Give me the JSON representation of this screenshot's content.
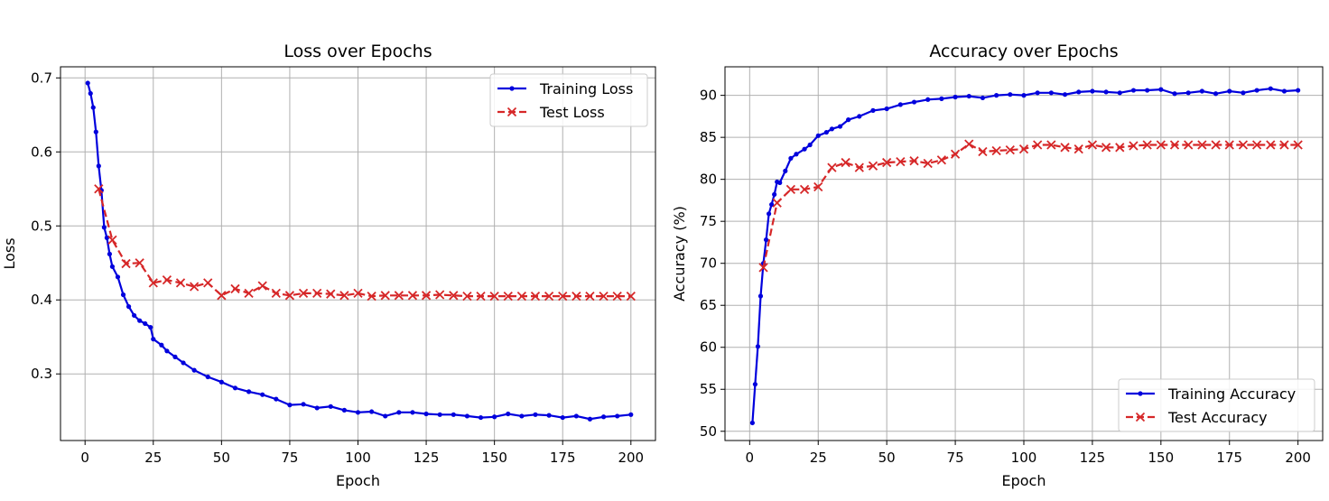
{
  "chart_data": [
    {
      "type": "line",
      "title": "Loss over Epochs",
      "xlabel": "Epoch",
      "ylabel": "Loss",
      "xlim": [
        -9,
        209
      ],
      "ylim": [
        0.21,
        0.715
      ],
      "xticks": [
        0,
        25,
        50,
        75,
        100,
        125,
        150,
        175,
        200
      ],
      "yticks": [
        0.3,
        0.4,
        0.5,
        0.6,
        0.7
      ],
      "ytick_labels": [
        "0.3",
        "0.4",
        "0.5",
        "0.6",
        "0.7"
      ],
      "grid": true,
      "legend_placement": "upper right",
      "series": [
        {
          "name": "Training Loss",
          "color": "#0000dd",
          "style": "solid-dot",
          "x": [
            1,
            2,
            3,
            4,
            5,
            6,
            7,
            8,
            9,
            10,
            12,
            14,
            16,
            18,
            20,
            22,
            24,
            25,
            28,
            30,
            33,
            36,
            40,
            45,
            50,
            55,
            60,
            65,
            70,
            75,
            80,
            85,
            90,
            95,
            100,
            105,
            110,
            115,
            120,
            125,
            130,
            135,
            140,
            145,
            150,
            155,
            160,
            165,
            170,
            175,
            180,
            185,
            190,
            195,
            200
          ],
          "values": [
            0.693,
            0.679,
            0.66,
            0.627,
            0.581,
            0.548,
            0.498,
            0.484,
            0.462,
            0.445,
            0.431,
            0.407,
            0.391,
            0.379,
            0.372,
            0.368,
            0.363,
            0.347,
            0.339,
            0.331,
            0.323,
            0.315,
            0.305,
            0.296,
            0.289,
            0.281,
            0.276,
            0.272,
            0.266,
            0.258,
            0.259,
            0.254,
            0.256,
            0.251,
            0.248,
            0.249,
            0.243,
            0.248,
            0.248,
            0.246,
            0.245,
            0.245,
            0.243,
            0.241,
            0.242,
            0.246,
            0.243,
            0.245,
            0.244,
            0.241,
            0.243,
            0.239,
            0.242,
            0.243,
            0.245
          ]
        },
        {
          "name": "Test Loss",
          "color": "#d62728",
          "style": "dashed-x",
          "x": [
            5,
            10,
            15,
            20,
            25,
            30,
            35,
            40,
            45,
            50,
            55,
            60,
            65,
            70,
            75,
            80,
            85,
            90,
            95,
            100,
            105,
            110,
            115,
            120,
            125,
            130,
            135,
            140,
            145,
            150,
            155,
            160,
            165,
            170,
            175,
            180,
            185,
            190,
            195,
            200
          ],
          "values": [
            0.55,
            0.481,
            0.449,
            0.45,
            0.423,
            0.427,
            0.423,
            0.418,
            0.423,
            0.406,
            0.415,
            0.409,
            0.419,
            0.409,
            0.406,
            0.409,
            0.409,
            0.408,
            0.406,
            0.409,
            0.405,
            0.406,
            0.406,
            0.406,
            0.406,
            0.407,
            0.406,
            0.405,
            0.405,
            0.405,
            0.405,
            0.405,
            0.405,
            0.405,
            0.405,
            0.405,
            0.405,
            0.405,
            0.405,
            0.405
          ]
        }
      ]
    },
    {
      "type": "line",
      "title": "Accuracy over Epochs",
      "xlabel": "Epoch",
      "ylabel": "Accuracy (%)",
      "xlim": [
        -9,
        209
      ],
      "ylim": [
        48.9,
        93.4
      ],
      "xticks": [
        0,
        25,
        50,
        75,
        100,
        125,
        150,
        175,
        200
      ],
      "yticks": [
        50,
        55,
        60,
        65,
        70,
        75,
        80,
        85,
        90
      ],
      "ytick_labels": [
        "50",
        "55",
        "60",
        "65",
        "70",
        "75",
        "80",
        "85",
        "90"
      ],
      "grid": true,
      "legend_placement": "lower right",
      "series": [
        {
          "name": "Training Accuracy",
          "color": "#0000dd",
          "style": "solid-dot",
          "x": [
            1,
            2,
            3,
            4,
            5,
            6,
            7,
            8,
            9,
            10,
            11,
            13,
            15,
            17,
            20,
            22,
            25,
            28,
            30,
            33,
            36,
            40,
            45,
            50,
            55,
            60,
            65,
            70,
            75,
            80,
            85,
            90,
            95,
            100,
            105,
            110,
            115,
            120,
            125,
            130,
            135,
            140,
            145,
            150,
            155,
            160,
            165,
            170,
            175,
            180,
            185,
            190,
            195,
            200
          ],
          "values": [
            51.0,
            55.6,
            60.1,
            66.1,
            70.0,
            72.8,
            75.9,
            77.0,
            78.2,
            79.7,
            79.6,
            81.0,
            82.5,
            83.0,
            83.6,
            84.1,
            85.2,
            85.6,
            86.0,
            86.3,
            87.1,
            87.5,
            88.2,
            88.4,
            88.9,
            89.2,
            89.5,
            89.6,
            89.8,
            89.9,
            89.7,
            90.0,
            90.1,
            90.0,
            90.3,
            90.3,
            90.1,
            90.4,
            90.5,
            90.4,
            90.3,
            90.6,
            90.6,
            90.7,
            90.2,
            90.3,
            90.5,
            90.2,
            90.5,
            90.3,
            90.6,
            90.8,
            90.5,
            90.6
          ]
        },
        {
          "name": "Test Accuracy",
          "color": "#d62728",
          "style": "dashed-x",
          "x": [
            5,
            10,
            15,
            20,
            25,
            30,
            35,
            40,
            45,
            50,
            55,
            60,
            65,
            70,
            75,
            80,
            85,
            90,
            95,
            100,
            105,
            110,
            115,
            120,
            125,
            130,
            135,
            140,
            145,
            150,
            155,
            160,
            165,
            170,
            175,
            180,
            185,
            190,
            195,
            200
          ],
          "values": [
            69.5,
            77.2,
            78.8,
            78.8,
            79.1,
            81.4,
            82.0,
            81.4,
            81.6,
            82.0,
            82.1,
            82.2,
            81.9,
            82.3,
            83.0,
            84.2,
            83.3,
            83.4,
            83.5,
            83.6,
            84.1,
            84.1,
            83.8,
            83.6,
            84.1,
            83.8,
            83.8,
            84.0,
            84.1,
            84.1,
            84.1,
            84.1,
            84.1,
            84.1,
            84.1,
            84.1,
            84.1,
            84.1,
            84.1,
            84.1
          ]
        }
      ]
    }
  ]
}
